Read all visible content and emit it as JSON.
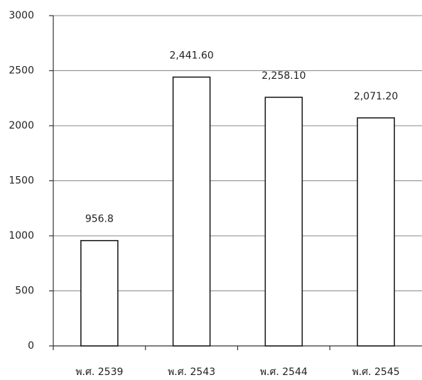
{
  "chart_data": {
    "type": "bar",
    "categories": [
      "พ.ศ. 2539",
      "พ.ศ. 2543",
      "พ.ศ. 2544",
      "พ.ศ. 2545"
    ],
    "values": [
      956.8,
      2441.6,
      2258.1,
      2071.2
    ],
    "value_labels": [
      "956.8",
      "2,441.60",
      "2,258.10",
      "2,071.20"
    ],
    "color": "#ffffff",
    "ylim": [
      0,
      3000
    ],
    "yticks": [
      0,
      500,
      1000,
      1500,
      2000,
      2500,
      3000
    ],
    "grid": true
  }
}
